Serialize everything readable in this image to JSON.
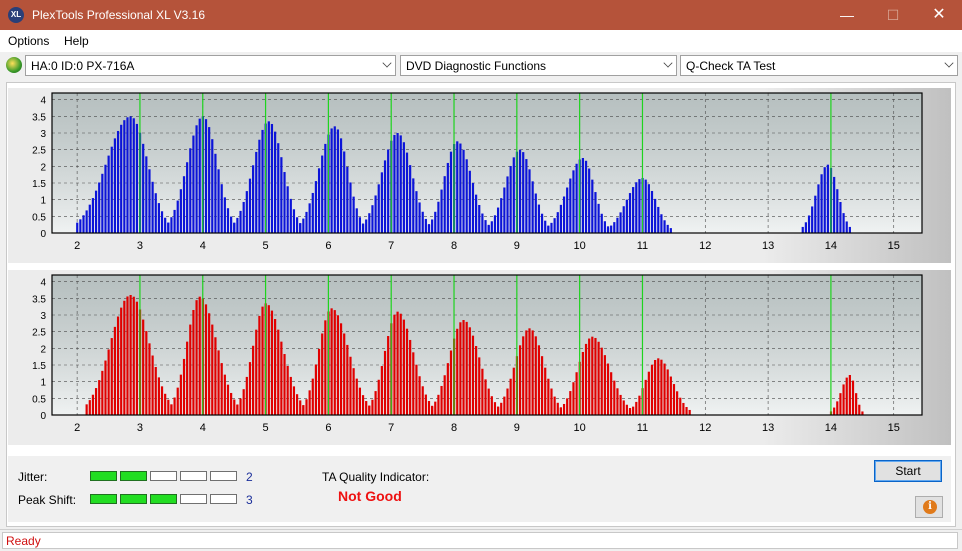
{
  "window": {
    "title": "PlexTools Professional XL V3.16",
    "icon_text": "XL",
    "minimize": "—",
    "maximize": "☐",
    "close": "✕"
  },
  "menu": {
    "items": [
      "Options",
      "Help"
    ]
  },
  "toolbar": {
    "drive": "HA:0 ID:0  PX-716A",
    "function": "DVD Diagnostic Functions",
    "test": "Q-Check TA Test"
  },
  "colors": {
    "top_bars": "#0c14d8",
    "bottom_bars": "#e00000",
    "marker_lines": "#1ed41e",
    "plot_bg": "#c8d0d0"
  },
  "chart_data": [
    {
      "type": "bar",
      "title": "",
      "x_ticks": [
        "2",
        "3",
        "4",
        "5",
        "6",
        "7",
        "8",
        "9",
        "10",
        "11",
        "12",
        "13",
        "14",
        "15"
      ],
      "y_ticks": [
        "0",
        "0.5",
        "1",
        "1.5",
        "2",
        "2.5",
        "3",
        "3.5",
        "4"
      ],
      "xlim": [
        1.6,
        15.45
      ],
      "ylim": [
        0,
        4.2
      ],
      "markers": [
        3,
        4,
        5,
        6,
        7,
        8,
        9,
        10,
        11,
        14
      ],
      "series": [
        {
          "peak_x": 2.85,
          "peak_y": 3.5,
          "start": 2.0,
          "end": 3.45
        },
        {
          "peak_x": 4.0,
          "peak_y": 3.5,
          "start": 3.45,
          "end": 4.5
        },
        {
          "peak_x": 5.05,
          "peak_y": 3.35,
          "start": 4.5,
          "end": 5.55
        },
        {
          "peak_x": 6.1,
          "peak_y": 3.2,
          "start": 5.55,
          "end": 6.55
        },
        {
          "peak_x": 7.1,
          "peak_y": 3.0,
          "start": 6.55,
          "end": 7.6
        },
        {
          "peak_x": 8.05,
          "peak_y": 2.75,
          "start": 7.6,
          "end": 8.55
        },
        {
          "peak_x": 9.05,
          "peak_y": 2.5,
          "start": 8.55,
          "end": 9.5
        },
        {
          "peak_x": 10.05,
          "peak_y": 2.25,
          "start": 9.5,
          "end": 10.45
        },
        {
          "peak_x": 11.0,
          "peak_y": 1.65,
          "start": 10.45,
          "end": 11.45
        },
        {
          "peak_x": 13.95,
          "peak_y": 2.05,
          "start": 13.55,
          "end": 14.3
        }
      ]
    },
    {
      "type": "bar",
      "title": "",
      "x_ticks": [
        "2",
        "3",
        "4",
        "5",
        "6",
        "7",
        "8",
        "9",
        "10",
        "11",
        "12",
        "13",
        "14",
        "15"
      ],
      "y_ticks": [
        "0",
        "0.5",
        "1",
        "1.5",
        "2",
        "2.5",
        "3",
        "3.5",
        "4"
      ],
      "xlim": [
        1.6,
        15.45
      ],
      "ylim": [
        0,
        4.2
      ],
      "markers": [
        3,
        4,
        5,
        6,
        7,
        8,
        9,
        10,
        11,
        14
      ],
      "series": [
        {
          "peak_x": 2.85,
          "peak_y": 3.6,
          "start": 2.15,
          "end": 3.5
        },
        {
          "peak_x": 3.95,
          "peak_y": 3.55,
          "start": 3.5,
          "end": 4.55
        },
        {
          "peak_x": 5.0,
          "peak_y": 3.35,
          "start": 4.55,
          "end": 5.6
        },
        {
          "peak_x": 6.05,
          "peak_y": 3.2,
          "start": 5.6,
          "end": 6.65
        },
        {
          "peak_x": 7.1,
          "peak_y": 3.1,
          "start": 6.65,
          "end": 7.65
        },
        {
          "peak_x": 8.15,
          "peak_y": 2.85,
          "start": 7.65,
          "end": 8.7
        },
        {
          "peak_x": 9.2,
          "peak_y": 2.6,
          "start": 8.7,
          "end": 9.7
        },
        {
          "peak_x": 10.2,
          "peak_y": 2.35,
          "start": 9.7,
          "end": 10.8
        },
        {
          "peak_x": 11.25,
          "peak_y": 1.7,
          "start": 10.8,
          "end": 11.75
        },
        {
          "peak_x": 14.3,
          "peak_y": 1.2,
          "start": 14.0,
          "end": 14.5
        }
      ]
    }
  ],
  "metrics": {
    "jitter": {
      "label": "Jitter:",
      "value": "2",
      "level": 2,
      "max": 5
    },
    "peak_shift": {
      "label": "Peak Shift:",
      "value": "3",
      "level": 3,
      "max": 5
    }
  },
  "ta": {
    "label": "TA Quality Indicator:",
    "result": "Not Good"
  },
  "buttons": {
    "start": "Start",
    "info_icon": "i"
  },
  "status": {
    "text": "Ready"
  }
}
